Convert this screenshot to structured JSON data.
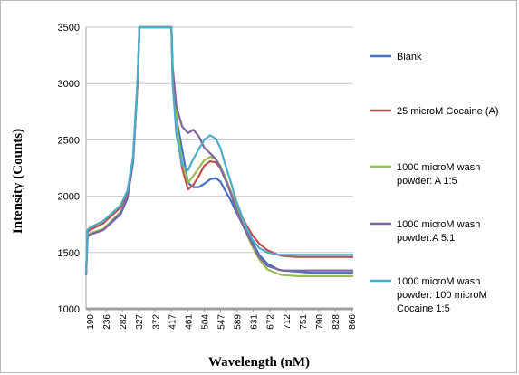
{
  "chart_data": {
    "type": "line",
    "title": "",
    "xlabel": "Wavelength (nM)",
    "ylabel": "Intensity (Counts)",
    "ylim": [
      1000,
      3500
    ],
    "yticks": [
      "1000",
      "1500",
      "2000",
      "2500",
      "3000",
      "3500"
    ],
    "xlim": [
      190,
      900
    ],
    "xticks": [
      "190",
      "236",
      "282",
      "327",
      "372",
      "417",
      "461",
      "504",
      "547",
      "589",
      "631",
      "672",
      "712",
      "751",
      "790",
      "828",
      "866"
    ],
    "grid": "horizontal",
    "legend_position": "right",
    "x": [
      190,
      194,
      200,
      236,
      282,
      300,
      315,
      327,
      332,
      335,
      340,
      417,
      420,
      430,
      445,
      461,
      475,
      490,
      504,
      520,
      535,
      547,
      560,
      575,
      589,
      610,
      631,
      650,
      672,
      700,
      712,
      751,
      790,
      828,
      866,
      900
    ],
    "series": [
      {
        "name": "Blank",
        "color": "#4472c4",
        "values": [
          1310,
          1640,
          1660,
          1700,
          1840,
          1980,
          2300,
          3000,
          3500,
          3500,
          3500,
          3500,
          3100,
          2700,
          2420,
          2120,
          2080,
          2080,
          2110,
          2150,
          2160,
          2130,
          2050,
          1960,
          1860,
          1720,
          1600,
          1480,
          1400,
          1350,
          1340,
          1330,
          1320,
          1320,
          1320,
          1320
        ]
      },
      {
        "name": "25 microM Cocaine (A)",
        "color": "#c0504d",
        "values": [
          1330,
          1680,
          1700,
          1760,
          1900,
          2020,
          2320,
          3020,
          3500,
          3500,
          3500,
          3500,
          3050,
          2600,
          2250,
          2060,
          2100,
          2180,
          2270,
          2310,
          2300,
          2250,
          2150,
          2040,
          1920,
          1780,
          1660,
          1580,
          1520,
          1480,
          1470,
          1460,
          1460,
          1460,
          1460,
          1460
        ]
      },
      {
        "name": "1000 microM wash powder: A 1:5",
        "color": "#9bbb59",
        "values": [
          1300,
          1650,
          1670,
          1710,
          1860,
          1990,
          2310,
          3010,
          3500,
          3500,
          3500,
          3500,
          3050,
          2650,
          2300,
          2120,
          2180,
          2250,
          2320,
          2350,
          2330,
          2270,
          2170,
          2040,
          1900,
          1720,
          1560,
          1440,
          1350,
          1310,
          1300,
          1290,
          1290,
          1290,
          1290,
          1290
        ]
      },
      {
        "name": "1000 microM wash powder:A 5:1",
        "color": "#8064a2",
        "values": [
          1300,
          1640,
          1660,
          1700,
          1850,
          1990,
          2310,
          3010,
          3500,
          3500,
          3500,
          3500,
          3150,
          2800,
          2620,
          2560,
          2590,
          2530,
          2430,
          2380,
          2330,
          2250,
          2150,
          2020,
          1880,
          1720,
          1580,
          1460,
          1380,
          1350,
          1340,
          1340,
          1340,
          1340,
          1340,
          1340
        ]
      },
      {
        "name": "1000 microM wash powder: 100 microM Cocaine 1:5",
        "color": "#4bacc6",
        "values": [
          1310,
          1700,
          1720,
          1780,
          1920,
          2050,
          2350,
          3040,
          3500,
          3500,
          3500,
          3500,
          3000,
          2550,
          2280,
          2230,
          2330,
          2420,
          2500,
          2540,
          2510,
          2430,
          2280,
          2120,
          1960,
          1770,
          1620,
          1540,
          1500,
          1480,
          1480,
          1480,
          1480,
          1480,
          1480,
          1480
        ]
      }
    ]
  }
}
